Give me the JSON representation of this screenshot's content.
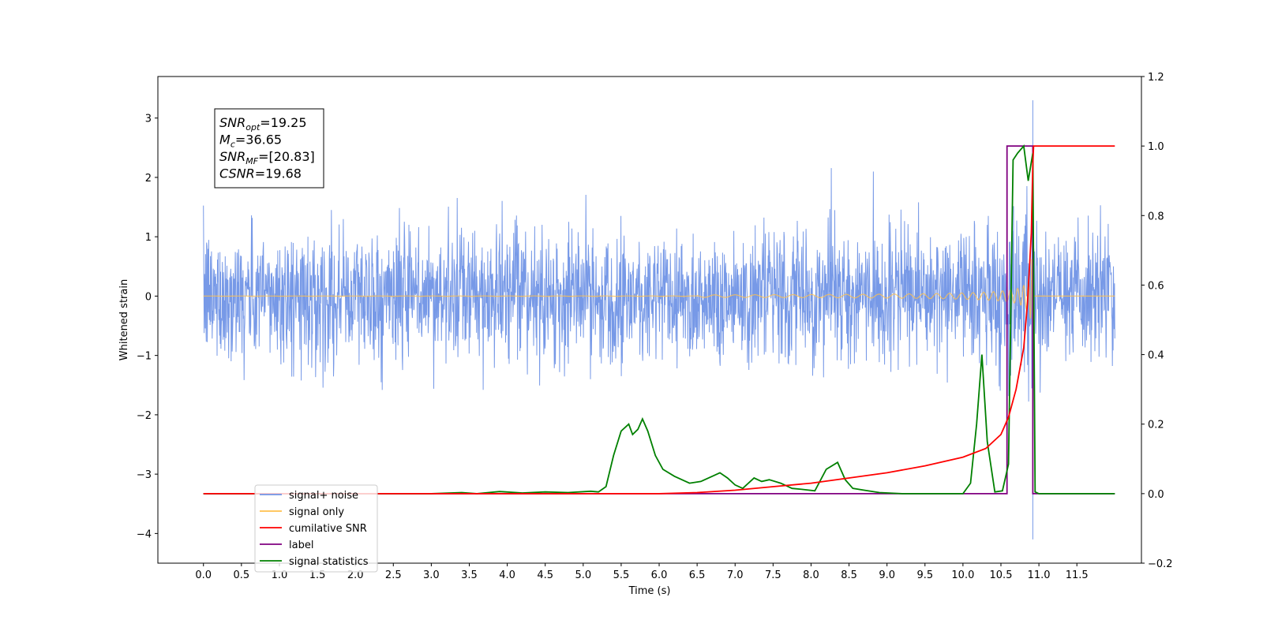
{
  "chart_data": {
    "type": "line",
    "xlabel": "Time (s)",
    "ylabel": "Whitened strain",
    "xlim": [
      -0.6,
      12.35
    ],
    "ylim": [
      -4.5,
      3.7
    ],
    "ylim_right": [
      -0.2,
      1.2
    ],
    "xticks": [
      "0.0",
      "0.5",
      "1.0",
      "1.5",
      "2.0",
      "2.5",
      "3.0",
      "3.5",
      "4.0",
      "4.5",
      "5.0",
      "5.5",
      "6.0",
      "6.5",
      "7.0",
      "7.5",
      "8.0",
      "8.5",
      "9.0",
      "9.5",
      "10.0",
      "10.5",
      "11.0",
      "11.5"
    ],
    "yticks": [
      "3",
      "2",
      "1",
      "0",
      "−1",
      "−2",
      "−3",
      "−4"
    ],
    "yticks_right": [
      "1.2",
      "1.0",
      "0.8",
      "0.6",
      "0.4",
      "0.2",
      "0.0",
      "−0.2"
    ],
    "annotation": {
      "lines": [
        {
          "base": "SNR",
          "sub": "opt",
          "value": "=19.25"
        },
        {
          "base": "M",
          "sub": "c",
          "value": "=36.65"
        },
        {
          "base": "SNR",
          "sub": "MF",
          "value": "=[20.83]"
        },
        {
          "base": "CSNR",
          "sub": "",
          "value": "=19.68"
        }
      ]
    },
    "legend": {
      "placement": "lower-left",
      "entries": [
        {
          "label": "signal+ noise",
          "color": "#7094e6"
        },
        {
          "label": "signal only",
          "color": "#ffc04d"
        },
        {
          "label": "cumilative SNR",
          "color": "#ff0000"
        },
        {
          "label": "label",
          "color": "#800080"
        },
        {
          "label": "signal statistics",
          "color": "#008000"
        }
      ]
    },
    "series": [
      {
        "name": "signal+ noise",
        "axis": "left",
        "color": "#7094e6",
        "kind": "noise",
        "t_start": 0.0,
        "t_end": 12.0,
        "std": 0.55,
        "max": 3.3,
        "min": -4.1,
        "merger_time": 10.92
      },
      {
        "name": "signal only",
        "axis": "left",
        "color": "#ffc04d",
        "kind": "chirp",
        "t_start": 0.0,
        "t_end": 12.0,
        "merger_time": 10.92,
        "peak_amplitude": 3.1
      },
      {
        "name": "cumilative SNR",
        "axis": "right",
        "x": [
          0.0,
          6.0,
          6.5,
          7.0,
          7.5,
          8.0,
          8.5,
          9.0,
          9.5,
          10.0,
          10.3,
          10.5,
          10.6,
          10.7,
          10.8,
          10.85,
          10.9,
          10.92,
          10.93,
          12.0
        ],
        "y": [
          0.0,
          0.0,
          0.003,
          0.01,
          0.02,
          0.03,
          0.045,
          0.06,
          0.08,
          0.105,
          0.13,
          0.17,
          0.22,
          0.3,
          0.42,
          0.55,
          0.75,
          0.95,
          1.0,
          1.0
        ]
      },
      {
        "name": "label",
        "axis": "right",
        "x": [
          0.0,
          10.58,
          10.58,
          10.92,
          10.92,
          12.0
        ],
        "y": [
          0.0,
          0.0,
          1.0,
          1.0,
          0.0,
          0.0
        ]
      },
      {
        "name": "signal statistics",
        "axis": "right",
        "x": [
          0.0,
          3.0,
          3.4,
          3.6,
          3.9,
          4.2,
          4.5,
          4.8,
          5.1,
          5.2,
          5.3,
          5.4,
          5.5,
          5.6,
          5.65,
          5.72,
          5.78,
          5.85,
          5.95,
          6.05,
          6.2,
          6.4,
          6.55,
          6.7,
          6.8,
          6.9,
          7.0,
          7.1,
          7.25,
          7.35,
          7.45,
          7.6,
          7.75,
          7.9,
          8.05,
          8.2,
          8.35,
          8.45,
          8.55,
          8.7,
          8.9,
          9.2,
          9.6,
          10.0,
          10.1,
          10.18,
          10.25,
          10.32,
          10.42,
          10.52,
          10.6,
          10.66,
          10.72,
          10.8,
          10.86,
          10.92,
          10.95,
          11.0,
          12.0
        ],
        "y": [
          0.0,
          0.0,
          0.003,
          0.0,
          0.006,
          0.002,
          0.005,
          0.003,
          0.007,
          0.005,
          0.02,
          0.11,
          0.18,
          0.2,
          0.17,
          0.185,
          0.215,
          0.18,
          0.11,
          0.07,
          0.05,
          0.03,
          0.035,
          0.05,
          0.06,
          0.045,
          0.025,
          0.015,
          0.045,
          0.035,
          0.04,
          0.03,
          0.015,
          0.012,
          0.008,
          0.07,
          0.09,
          0.04,
          0.015,
          0.01,
          0.003,
          0.0,
          0.0,
          0.0,
          0.03,
          0.2,
          0.4,
          0.15,
          0.005,
          0.008,
          0.085,
          0.96,
          0.98,
          1.0,
          0.9,
          0.98,
          0.005,
          0.0,
          0.0
        ]
      }
    ]
  }
}
